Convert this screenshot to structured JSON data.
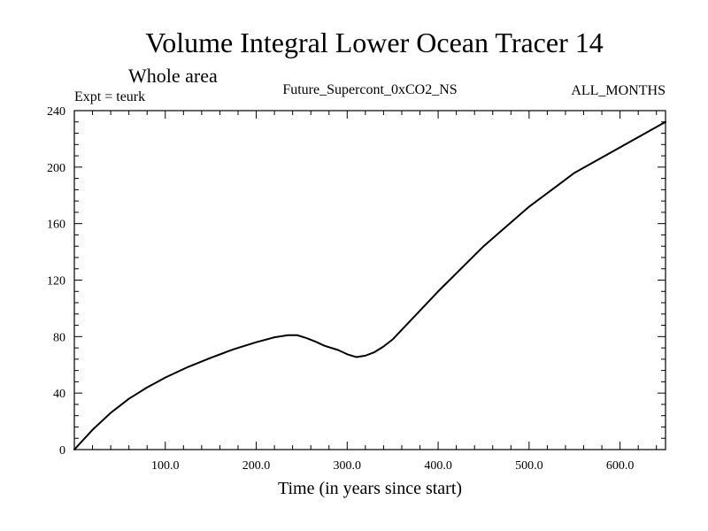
{
  "chart_data": {
    "type": "line",
    "title": "Volume Integral Lower Ocean Tracer 14",
    "subtitle": "Whole area",
    "expt_label": "Expt = teurk",
    "run_label": "Future_Supercont_0xCO2_NS",
    "months_label": "ALL_MONTHS",
    "xlabel": "Time (in years since start)",
    "ylabel": "",
    "xlim": [
      0,
      650
    ],
    "ylim": [
      0,
      240
    ],
    "x_ticks": [
      100,
      200,
      300,
      400,
      500,
      600
    ],
    "x_tick_labels": [
      "100.0",
      "200.0",
      "300.0",
      "400.0",
      "500.0",
      "600.0"
    ],
    "y_ticks": [
      0,
      40,
      80,
      120,
      160,
      200,
      240
    ],
    "y_tick_labels": [
      "0",
      "40",
      "80",
      "120",
      "160",
      "200",
      "240"
    ],
    "grid": false,
    "series": [
      {
        "line_color": "#000000",
        "x": [
          0,
          10,
          20,
          30,
          40,
          50,
          60,
          70,
          80,
          90,
          100,
          125,
          150,
          175,
          200,
          220,
          235,
          245,
          255,
          265,
          275,
          290,
          300,
          310,
          320,
          330,
          340,
          350,
          375,
          400,
          450,
          500,
          550,
          600,
          650
        ],
        "y": [
          0,
          7,
          14,
          20,
          26,
          31,
          36,
          40,
          44,
          47.5,
          51,
          58.5,
          65,
          71,
          76,
          79.5,
          81,
          81,
          79,
          76.5,
          73.5,
          70.5,
          67.5,
          65.5,
          66.5,
          69,
          73,
          78,
          95,
          112,
          144,
          172,
          196,
          214,
          232
        ]
      }
    ]
  }
}
